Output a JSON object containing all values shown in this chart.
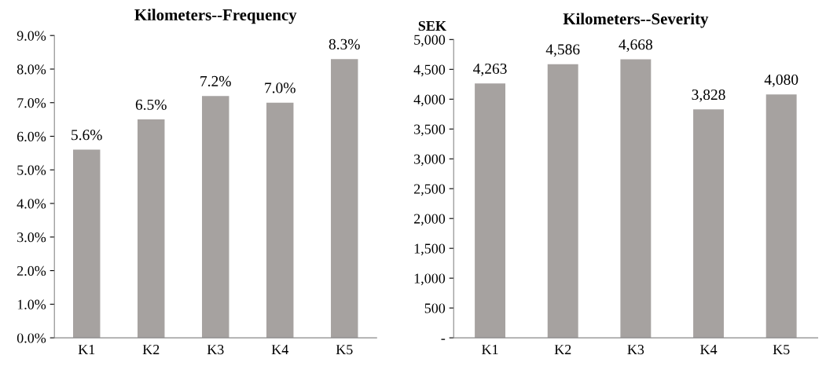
{
  "chart_data": [
    {
      "type": "bar",
      "title": "Kilometers--Frequency",
      "categories": [
        "K1",
        "K2",
        "K3",
        "K4",
        "K5"
      ],
      "values": [
        5.6,
        6.5,
        7.2,
        7.0,
        8.3
      ],
      "value_labels": [
        "5.6%",
        "6.5%",
        "7.2%",
        "7.0%",
        "8.3%"
      ],
      "color": "#a6a2a0",
      "ylim": [
        0,
        9
      ],
      "yticks": [
        {
          "value": 0,
          "label": "0.0%"
        },
        {
          "value": 1,
          "label": "1.0%"
        },
        {
          "value": 2,
          "label": "2.0%"
        },
        {
          "value": 3,
          "label": "3.0%"
        },
        {
          "value": 4,
          "label": "4.0%"
        },
        {
          "value": 5,
          "label": "5.0%"
        },
        {
          "value": 6,
          "label": "6.0%"
        },
        {
          "value": 7,
          "label": "7.0%"
        },
        {
          "value": 8,
          "label": "8.0%"
        },
        {
          "value": 9,
          "label": "9.0%"
        }
      ],
      "grid": false,
      "legend": false
    },
    {
      "type": "bar",
      "title": "Kilometers--Severity",
      "ylabel": "SEK",
      "categories": [
        "K1",
        "K2",
        "K3",
        "K4",
        "K5"
      ],
      "values": [
        4263,
        4586,
        4668,
        3828,
        4080
      ],
      "value_labels": [
        "4,263",
        "4,586",
        "4,668",
        "3,828",
        "4,080"
      ],
      "color": "#a6a2a0",
      "ylim": [
        0,
        5000
      ],
      "yticks": [
        {
          "value": 0,
          "label": "-"
        },
        {
          "value": 500,
          "label": "500"
        },
        {
          "value": 1000,
          "label": "1,000"
        },
        {
          "value": 1500,
          "label": "1,500"
        },
        {
          "value": 2000,
          "label": "2,000"
        },
        {
          "value": 2500,
          "label": "2,500"
        },
        {
          "value": 3000,
          "label": "3,000"
        },
        {
          "value": 3500,
          "label": "3,500"
        },
        {
          "value": 4000,
          "label": "4,000"
        },
        {
          "value": 4500,
          "label": "4,500"
        },
        {
          "value": 5000,
          "label": "5,000"
        }
      ],
      "grid": false,
      "legend": false
    }
  ]
}
